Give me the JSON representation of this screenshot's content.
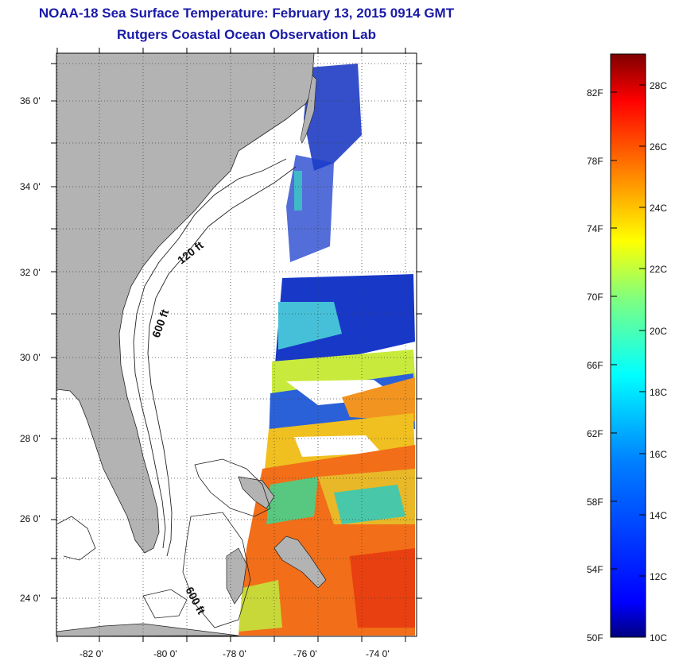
{
  "title": "NOAA-18 Sea Surface Temperature:  February 13, 2015 0914 GMT",
  "subtitle": "Rutgers Coastal Ocean Observation Lab",
  "map": {
    "lon_labels": [
      "-82 0'",
      "-80 0'",
      "-78 0'",
      "-76 0'",
      "-74 0'"
    ],
    "lat_labels": [
      "36 0'",
      "34 0'",
      "32 0'",
      "30 0'",
      "28 0'",
      "26 0'",
      "24 0'"
    ],
    "contour_labels": [
      "120 ft",
      "600 ft",
      "600 ft"
    ],
    "colors": {
      "land": "#b3b3b3",
      "ocean": "#ffffff",
      "grid": "#444444"
    }
  },
  "colorbar": {
    "fahrenheit_labels": [
      "82F",
      "78F",
      "74F",
      "70F",
      "66F",
      "62F",
      "58F",
      "54F",
      "50F"
    ],
    "celsius_labels": [
      "28C",
      "26C",
      "24C",
      "22C",
      "20C",
      "18C",
      "16C",
      "14C",
      "12C",
      "10C"
    ],
    "colors": [
      "#00007f",
      "#0000ff",
      "#007fff",
      "#00ffff",
      "#7fff7f",
      "#ffff00",
      "#ff7f00",
      "#ff0000",
      "#7f0000"
    ]
  }
}
